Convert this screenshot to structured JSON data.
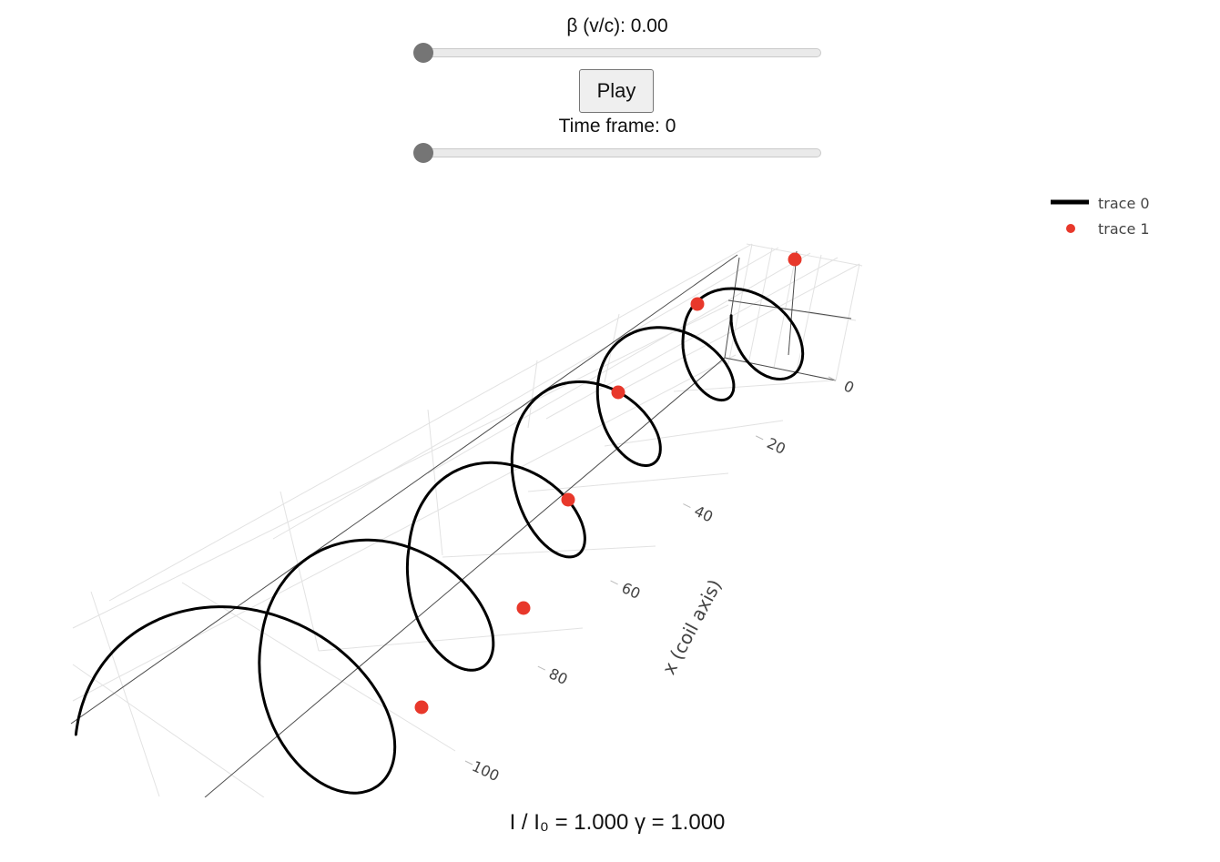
{
  "controls": {
    "beta_label": "β (v/c): 0.00",
    "beta_value": 0.0,
    "play_label": "Play",
    "time_label": "Time frame: 0",
    "time_value": 0
  },
  "status_text": "I / I₀ = 1.000 γ = 1.000",
  "chart_data": {
    "type": "scatter3d",
    "legend": {
      "placement": "top-right",
      "entries": [
        "trace 0",
        "trace 1"
      ]
    },
    "series": [
      {
        "name": "trace 0",
        "mode": "lines",
        "color": "#000000",
        "description_turns": 6
      },
      {
        "name": "trace 1",
        "mode": "markers",
        "color": "#e8382b",
        "marker_count": 6
      }
    ],
    "x_axis": {
      "title": "x (coil axis)",
      "ticks": [
        "0",
        "20",
        "40",
        "60",
        "80",
        "100"
      ],
      "tick_values": [
        0,
        20,
        40,
        60,
        80,
        100
      ],
      "range": [
        0,
        110
      ]
    },
    "grid": true
  }
}
